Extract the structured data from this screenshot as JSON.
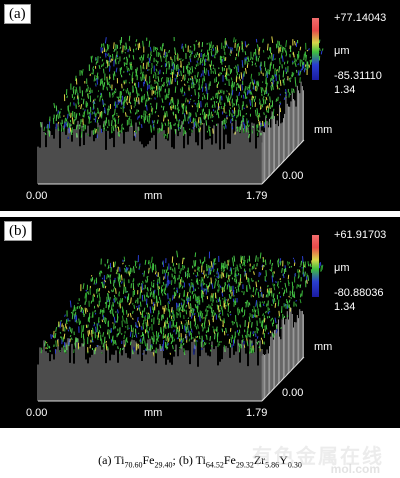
{
  "panels": [
    {
      "tag": "(a)",
      "scale_max": "+77.14043",
      "unit": "μm",
      "scale_min": "-85.31110",
      "y_extent": "1.34",
      "y_unit": "mm",
      "y_origin": "0.00",
      "x_start": "0.00",
      "x_unit": "mm",
      "x_end": "1.79"
    },
    {
      "tag": "(b)",
      "scale_max": "+61.91703",
      "unit": "μm",
      "scale_min": "-80.88036",
      "y_extent": "1.34",
      "y_unit": "mm",
      "y_origin": "0.00",
      "x_start": "0.00",
      "x_unit": "mm",
      "x_end": "1.79"
    }
  ],
  "caption": {
    "a_label": "(a) Ti",
    "a_ti": "70.60",
    "a_fe": "Fe",
    "a_fe_sub": "29.40",
    "sep": ";  (b) Ti",
    "b_ti": "64.52",
    "b_fe": "Fe",
    "b_fe_sub": "29.32",
    "b_zr": "Zr",
    "b_zr_sub": "5.86",
    "b_y": "Y",
    "b_y_sub": "0.30"
  },
  "watermark": {
    "text": "有色金属在线",
    "url": "mol.com"
  },
  "colors": {
    "background": "#000000",
    "surface_green": "#3fbf3f",
    "surface_blue": "#2a3fd0",
    "surface_yellow": "#e0d84a",
    "edge_gray": "#bfbfbf"
  }
}
